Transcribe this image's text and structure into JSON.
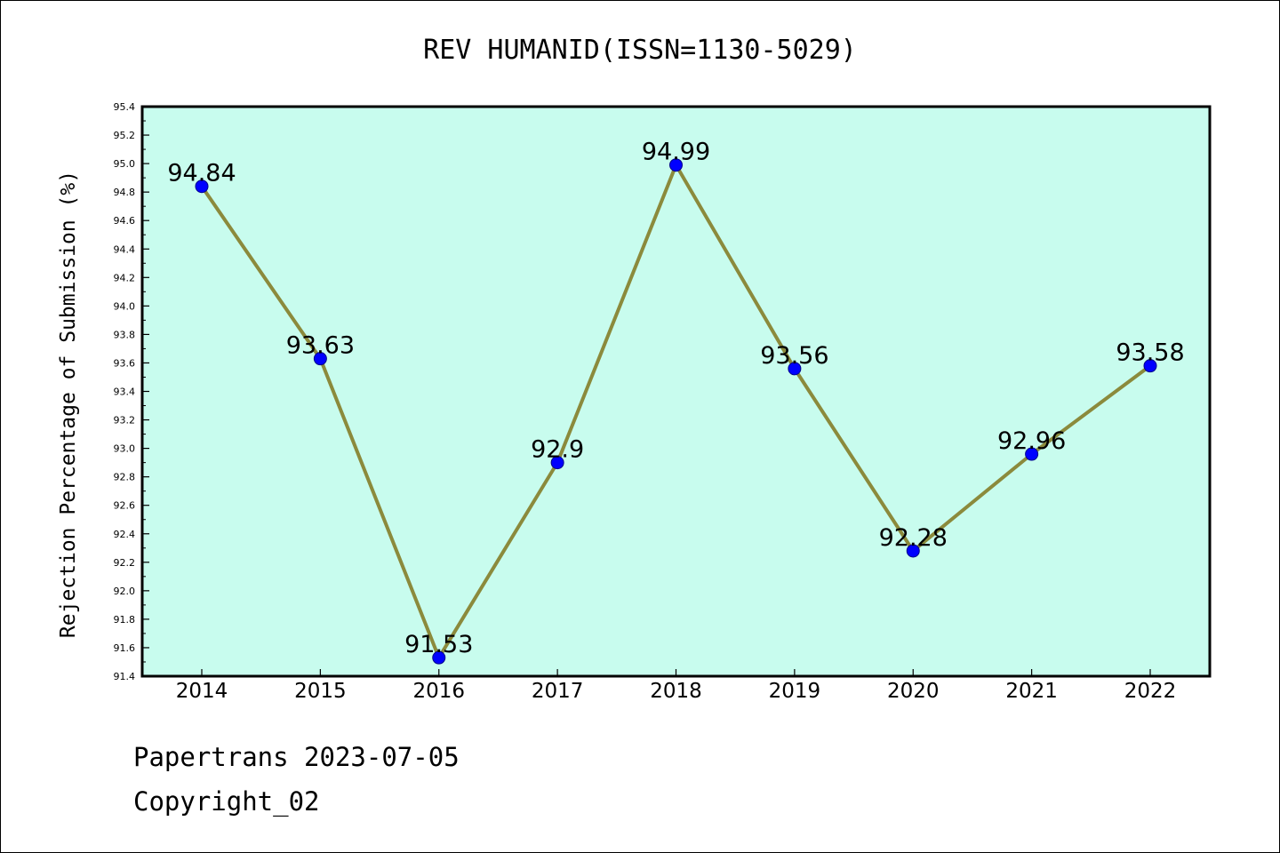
{
  "chart_data": {
    "type": "line",
    "title": "REV HUMANID(ISSN=1130-5029)",
    "xlabel": "",
    "ylabel": "Rejection Percentage of Submission (%)",
    "categories": [
      "2014",
      "2015",
      "2016",
      "2017",
      "2018",
      "2019",
      "2020",
      "2021",
      "2022"
    ],
    "series": [
      {
        "values": [
          94.84,
          93.63,
          91.53,
          92.9,
          94.99,
          93.56,
          92.28,
          92.96,
          93.58
        ],
        "labels": [
          "94.84",
          "93.63",
          "91.53",
          "92.9",
          "94.99",
          "93.56",
          "92.28",
          "92.96",
          "93.58"
        ]
      }
    ],
    "ylim": [
      91.4,
      95.4
    ],
    "yticks": [
      "91.4",
      "91.6",
      "91.8",
      "92.0",
      "92.2",
      "92.4",
      "92.6",
      "92.8",
      "93.0",
      "93.2",
      "93.4",
      "93.6",
      "93.8",
      "94.0",
      "94.2",
      "94.4",
      "94.6",
      "94.8",
      "95.0",
      "95.2",
      "95.4"
    ],
    "grid": false,
    "colors": {
      "plot_background": "#c8fcee",
      "line": "#8b8a3c",
      "marker": "#0000ff"
    }
  },
  "footer": {
    "line1": "Papertrans 2023-07-05",
    "line2": "Copyright_02"
  }
}
